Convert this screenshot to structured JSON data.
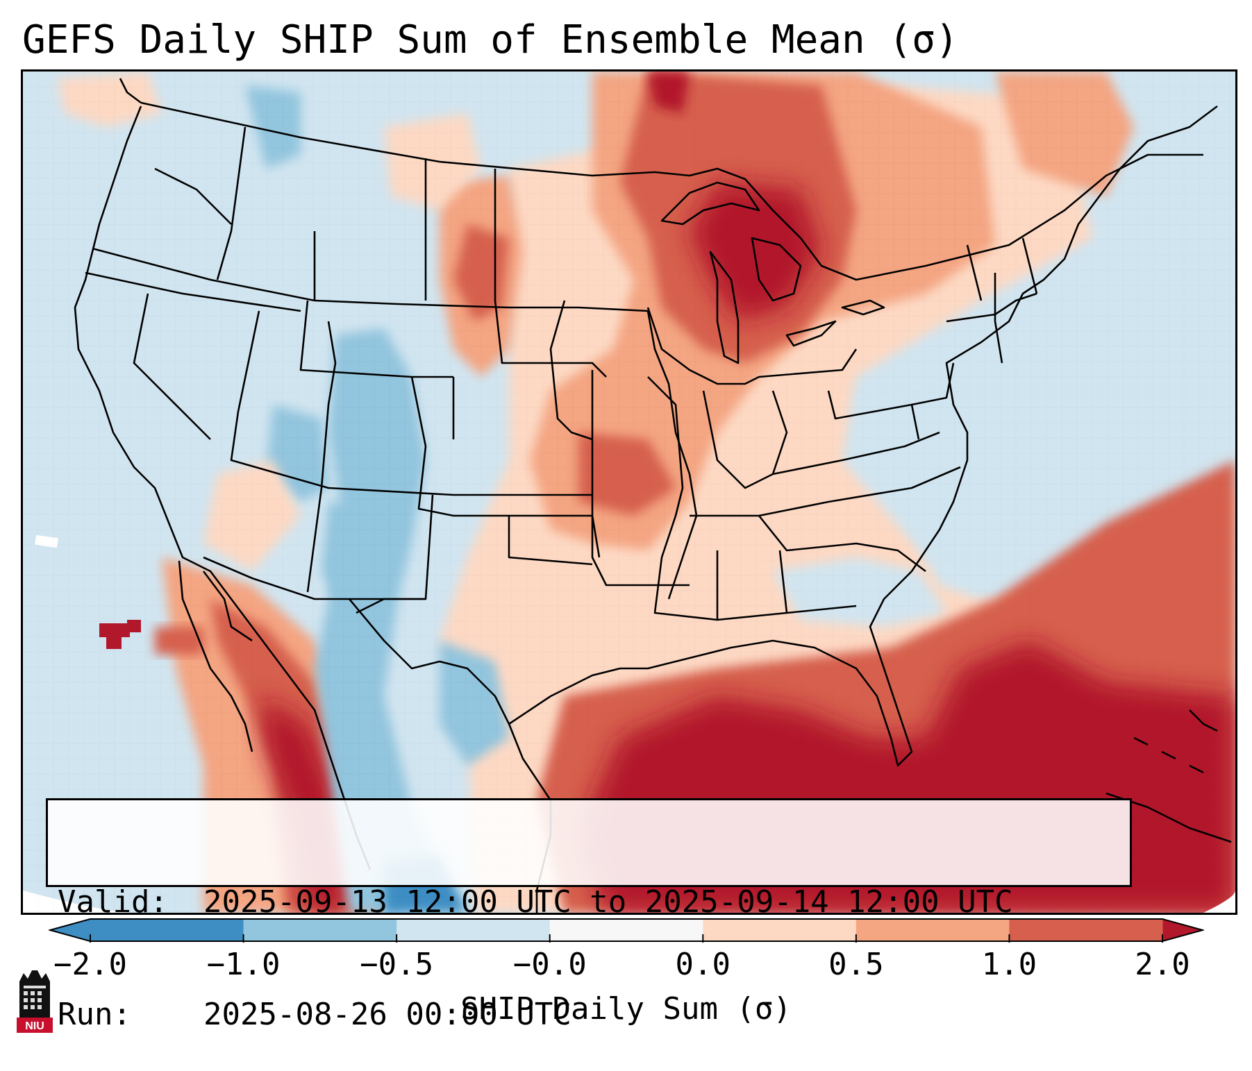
{
  "title": "GEFS Daily SHIP Sum of Ensemble Mean (σ)",
  "map": {
    "description_region": "Contiguous United States, northern Mexico, Gulf of Mexico",
    "field": "SHIP Daily Sum (σ)"
  },
  "info": {
    "valid_label": "Valid:",
    "valid_value": "2025-09-13 12:00 UTC to 2025-09-14 12:00 UTC",
    "run_label": "Run:",
    "run_value": "2025-08-26 00:00 UTC"
  },
  "colorbar": {
    "label": "SHIP Daily Sum (σ)",
    "ticks": [
      "−2.0",
      "−1.0",
      "−0.5",
      "−0.0",
      "0.0",
      "0.5",
      "1.0",
      "2.0"
    ],
    "colors": [
      "#3e8ec4",
      "#92c5de",
      "#d1e5f0",
      "#f7f7f7",
      "#fdd9c4",
      "#f4a582",
      "#d6604d",
      "#b2182b"
    ],
    "extend": "both"
  },
  "logo": {
    "text": "NIU",
    "icon": "niu-building-logo"
  }
}
